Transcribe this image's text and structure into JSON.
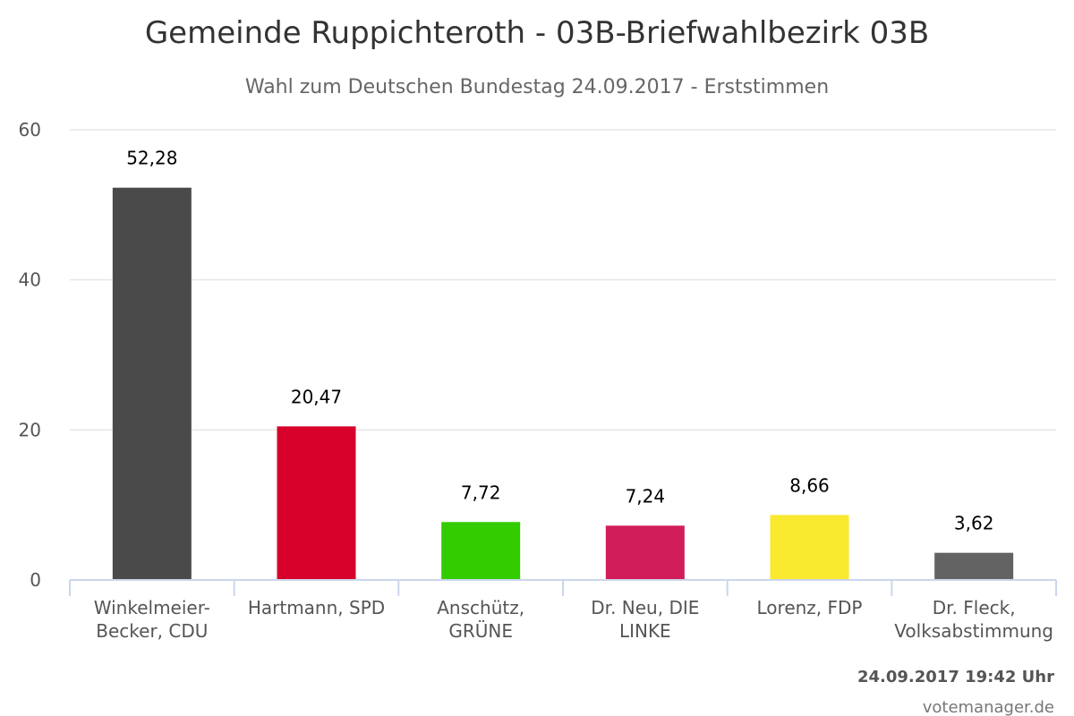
{
  "chart_data": {
    "type": "bar",
    "title": "Gemeinde Ruppichteroth - 03B-Briefwahlbezirk 03B",
    "subtitle": "Wahl zum Deutschen Bundestag 24.09.2017 - Erststimmen",
    "categories": [
      [
        "Winkelmeier-",
        "Becker, CDU"
      ],
      [
        "Hartmann, SPD"
      ],
      [
        "Anschütz,",
        "GRÜNE"
      ],
      [
        "Dr. Neu, DIE",
        "LINKE"
      ],
      [
        "Lorenz, FDP"
      ],
      [
        "Dr. Fleck,",
        "Volksabstimmung"
      ]
    ],
    "values": [
      52.28,
      20.47,
      7.72,
      7.24,
      8.66,
      3.62
    ],
    "value_labels": [
      "52,28",
      "20,47",
      "7,72",
      "7,24",
      "8,66",
      "3,62"
    ],
    "colors": [
      "#4a4a4a",
      "#d7002b",
      "#33cc00",
      "#d11d59",
      "#f9e92f",
      "#636363"
    ],
    "ylim": [
      0,
      60
    ],
    "yticks": [
      0,
      20,
      40,
      60
    ],
    "xlabel": "",
    "ylabel": "",
    "grid": true,
    "legend": "none"
  },
  "footer": {
    "timestamp": "24.09.2017 19:42 Uhr",
    "credit": "votemanager.de"
  }
}
